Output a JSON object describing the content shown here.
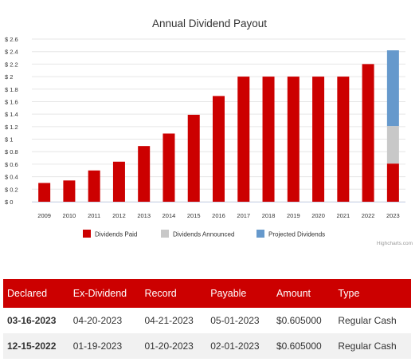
{
  "chart_data": {
    "type": "bar",
    "stacked": true,
    "title": "Annual Dividend Payout",
    "categories": [
      "2009",
      "2010",
      "2011",
      "2012",
      "2013",
      "2014",
      "2015",
      "2016",
      "2017",
      "2018",
      "2019",
      "2020",
      "2021",
      "2022",
      "2023"
    ],
    "series": [
      {
        "name": "Dividends Paid",
        "color": "#cc0000",
        "values": [
          0.3,
          0.34,
          0.5,
          0.64,
          0.89,
          1.09,
          1.39,
          1.69,
          2.0,
          2.0,
          2.0,
          2.0,
          2.0,
          2.2,
          0.61
        ]
      },
      {
        "name": "Dividends Announced",
        "color": "#c8c8c8",
        "values": [
          0,
          0,
          0,
          0,
          0,
          0,
          0,
          0,
          0,
          0,
          0,
          0,
          0,
          0,
          0.6
        ]
      },
      {
        "name": "Projected Dividends",
        "color": "#6699cc",
        "values": [
          0,
          0,
          0,
          0,
          0,
          0,
          0,
          0,
          0,
          0,
          0,
          0,
          0,
          0,
          1.21
        ]
      }
    ],
    "ylim": [
      0,
      2.6
    ],
    "yticks": [
      "$ 0",
      "$ 0.2",
      "$ 0.4",
      "$ 0.6",
      "$ 0.8",
      "$ 1",
      "$ 1.2",
      "$ 1.4",
      "$ 1.6",
      "$ 1.8",
      "$ 2",
      "$ 2.2",
      "$ 2.4",
      "$ 2.6"
    ],
    "legend_position": "bottom",
    "grid": true,
    "credits": "Highcharts.com"
  },
  "table": {
    "headers": [
      "Declared",
      "Ex-Dividend",
      "Record",
      "Payable",
      "Amount",
      "Type"
    ],
    "rows": [
      [
        "03-16-2023",
        "04-20-2023",
        "04-21-2023",
        "05-01-2023",
        "$0.605000",
        "Regular Cash"
      ],
      [
        "12-15-2022",
        "01-19-2023",
        "01-20-2023",
        "02-01-2023",
        "$0.605000",
        "Regular Cash"
      ]
    ]
  }
}
